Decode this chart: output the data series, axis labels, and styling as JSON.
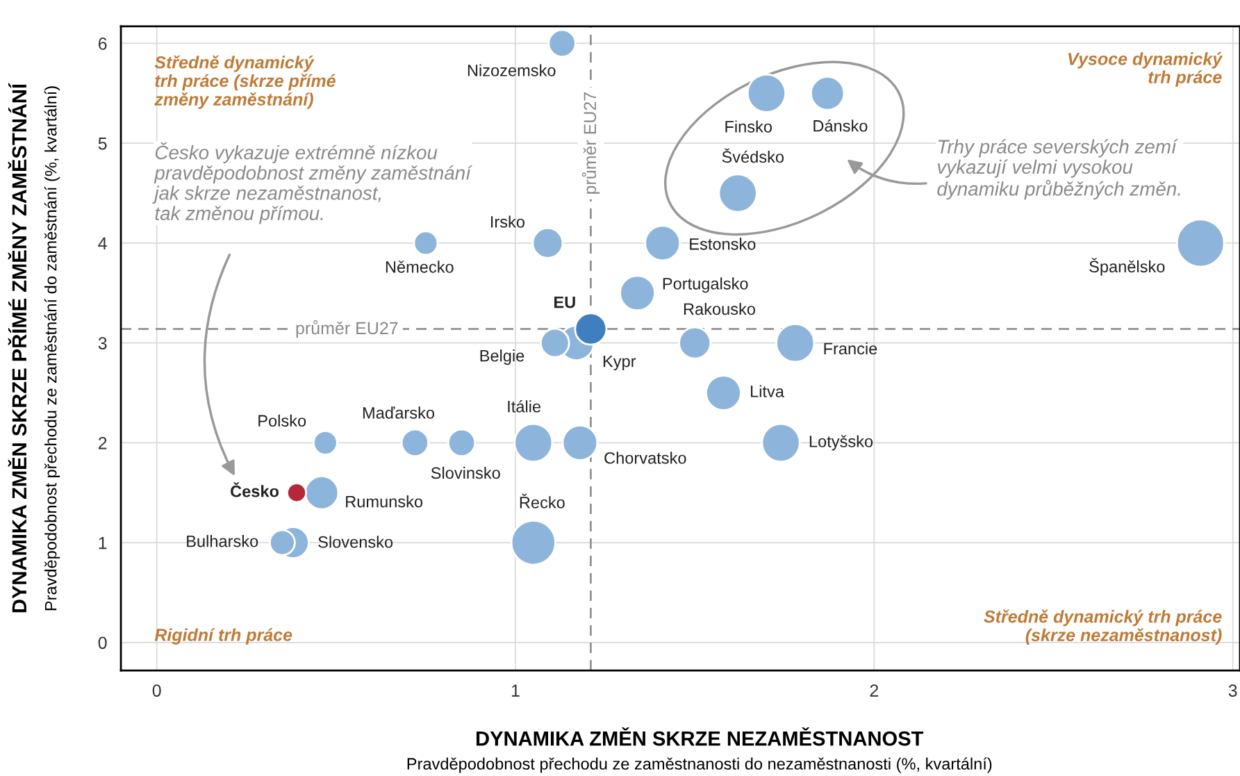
{
  "chart_data": {
    "type": "bubble",
    "xlabel": "DYNAMIKA ZMĚN SKRZE NEZAMĚSTNANOST\nPravděpodobnost přechodu ze zaměstnanosti do nezaměstnanosti (%, kvartální)",
    "ylabel": "DYNAMIKA ZMĚN SKRZE PŘÍMÉ ZMĚNY ZAMĚSTNÁNÍ\nPravděpodobnost přechodu ze zaměstnání do zaměstnání (%, kvartální)",
    "xlim": [
      -0.1,
      3.02
    ],
    "ylim": [
      -0.28,
      6.17
    ],
    "xticks": [
      0,
      1,
      2,
      3
    ],
    "yticks": [
      0,
      1,
      2,
      3,
      4,
      5,
      6
    ],
    "grid": true,
    "legend": false,
    "series": [
      {
        "name": "Nizozemsko",
        "color": "#8db5db",
        "x": [
          1.13
        ],
        "values": [
          6.0
        ],
        "sizes": [
          0.32
        ]
      },
      {
        "name": "Finsko",
        "color": "#8db5db",
        "x": [
          1.7
        ],
        "values": [
          5.5
        ],
        "sizes": [
          0.64
        ]
      },
      {
        "name": "Dánsko",
        "color": "#8db5db",
        "x": [
          1.87
        ],
        "values": [
          5.5
        ],
        "sizes": [
          0.49
        ]
      },
      {
        "name": "Švédsko",
        "color": "#8db5db",
        "x": [
          1.62
        ],
        "values": [
          4.5
        ],
        "sizes": [
          0.64
        ]
      },
      {
        "name": "Irsko",
        "color": "#8db5db",
        "x": [
          1.09
        ],
        "values": [
          4.0
        ],
        "sizes": [
          0.4
        ]
      },
      {
        "name": "Německo",
        "color": "#8db5db",
        "x": [
          0.75
        ],
        "values": [
          4.0
        ],
        "sizes": [
          0.25
        ]
      },
      {
        "name": "Estonsko",
        "color": "#8db5db",
        "x": [
          1.41
        ],
        "values": [
          4.0
        ],
        "sizes": [
          0.54
        ]
      },
      {
        "name": "Španělsko",
        "color": "#8db5db",
        "x": [
          2.91
        ],
        "values": [
          4.0
        ],
        "sizes": [
          1
        ]
      },
      {
        "name": "Portugalsko",
        "color": "#8db5db",
        "x": [
          1.34
        ],
        "values": [
          3.5
        ],
        "sizes": [
          0.54
        ]
      },
      {
        "name": "Kypr",
        "color": "#8db5db",
        "x": [
          1.17
        ],
        "values": [
          3.0
        ],
        "sizes": [
          0.54
        ]
      },
      {
        "name": "Belgie",
        "color": "#8db5db",
        "x": [
          1.11
        ],
        "values": [
          3.0
        ],
        "sizes": [
          0.36
        ]
      },
      {
        "name": "EU",
        "color": "#3f7fc0",
        "x": [
          1.21
        ],
        "values": [
          3.14
        ],
        "sizes": [
          0.44
        ]
      },
      {
        "name": "Rakousko",
        "color": "#8db5db",
        "x": [
          1.5
        ],
        "values": [
          3.0
        ],
        "sizes": [
          0.44
        ]
      },
      {
        "name": "Francie",
        "color": "#8db5db",
        "x": [
          1.78
        ],
        "values": [
          3.0
        ],
        "sizes": [
          0.64
        ]
      },
      {
        "name": "Litva",
        "color": "#8db5db",
        "x": [
          1.58
        ],
        "values": [
          2.5
        ],
        "sizes": [
          0.54
        ]
      },
      {
        "name": "Lotyšsko",
        "color": "#8db5db",
        "x": [
          1.74
        ],
        "values": [
          2.0
        ],
        "sizes": [
          0.64
        ]
      },
      {
        "name": "Chorvatsko",
        "color": "#8db5db",
        "x": [
          1.18
        ],
        "values": [
          2.0
        ],
        "sizes": [
          0.54
        ]
      },
      {
        "name": "Itálie",
        "color": "#8db5db",
        "x": [
          1.05
        ],
        "values": [
          2.0
        ],
        "sizes": [
          0.64
        ]
      },
      {
        "name": "Slovinsko",
        "color": "#8db5db",
        "x": [
          0.85
        ],
        "values": [
          2.0
        ],
        "sizes": [
          0.32
        ]
      },
      {
        "name": "Maďarsko",
        "color": "#8db5db",
        "x": [
          0.72
        ],
        "values": [
          2.0
        ],
        "sizes": [
          0.32
        ]
      },
      {
        "name": "Polsko",
        "color": "#8db5db",
        "x": [
          0.47
        ],
        "values": [
          2.0
        ],
        "sizes": [
          0.25
        ]
      },
      {
        "name": "Rumunsko",
        "color": "#8db5db",
        "x": [
          0.46
        ],
        "values": [
          1.5
        ],
        "sizes": [
          0.49
        ]
      },
      {
        "name": "Česko",
        "color": "#b5283b",
        "x": [
          0.39
        ],
        "values": [
          1.5
        ],
        "sizes": [
          0.16
        ]
      },
      {
        "name": "Řecko",
        "color": "#8db5db",
        "x": [
          1.05
        ],
        "values": [
          1.0
        ],
        "sizes": [
          0.87
        ]
      },
      {
        "name": "Slovensko",
        "color": "#8db5db",
        "x": [
          0.38
        ],
        "values": [
          1.0
        ],
        "sizes": [
          0.44
        ]
      },
      {
        "name": "Bulharsko",
        "color": "#8db5db",
        "x": [
          0.35
        ],
        "values": [
          1.0
        ],
        "sizes": [
          0.28
        ]
      }
    ],
    "ref_lines": [
      {
        "axis": "y",
        "value": 3.14,
        "label": "průměr EU27",
        "color": "#888888",
        "line_style": "dashed"
      },
      {
        "axis": "x",
        "value": 1.21,
        "label": "průměr EU27",
        "color": "#888888",
        "line_style": "dashed"
      }
    ],
    "annotations": [
      "Středně dynamický\ntrh práce (skrze přímé\nzměny zaměstnání)",
      "Vysoce dynamický\ntrh práce",
      "Rigidní trh práce",
      "Středně dynamický trh práce\n(skrze nezaměstnanost)",
      "Česko vykazuje extrémně nízkou\npravděpodobnost změny zaměstnání\njak skrze nezaměstnanost,\ntak změnou přímou.",
      "Trhy práce severských zemí\nvykazují velmi vysokou\ndynamiku průběžných změn."
    ]
  }
}
